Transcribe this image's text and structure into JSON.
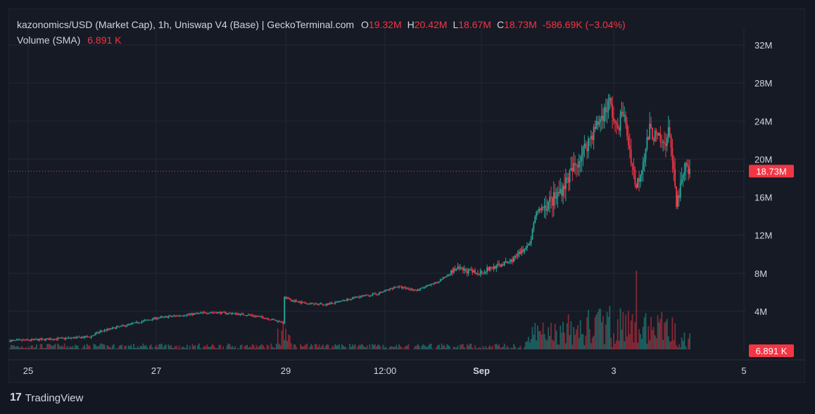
{
  "header": {
    "symbol": "kazonomics/USD (Market Cap), 1h, Uniswap V4 (Base) | GeckoTerminal.com",
    "o_label": "O",
    "o_value": "19.32M",
    "h_label": "H",
    "h_value": "20.42M",
    "l_label": "L",
    "l_value": "18.67M",
    "c_label": "C",
    "c_value": "18.73M",
    "change": "-586.69K (−3.04%)",
    "volume_label": "Volume (SMA)",
    "volume_value": "6.891 K"
  },
  "footer": {
    "brand": "TradingView",
    "logo_icon": "tradingview-logo-icon"
  },
  "colors": {
    "up": "#26a69a",
    "down": "#f23645",
    "grid": "#232838",
    "text": "#d1d4dc",
    "bg": "#161a25"
  },
  "chart_data": {
    "type": "candlestick",
    "y_axis": {
      "ticks": [
        "4M",
        "8M",
        "12M",
        "16M",
        "20M",
        "24M",
        "28M",
        "32M"
      ],
      "tick_values": [
        4,
        8,
        12,
        16,
        20,
        24,
        28,
        32
      ],
      "unit": "M",
      "position": "right"
    },
    "x_axis": {
      "ticks": [
        "25",
        "27",
        "29",
        "12:00",
        "Sep",
        "3",
        "5"
      ]
    },
    "last_price_label": "18.73M",
    "last_volume_label": "6.891 K",
    "price_path_millions": [
      [
        0,
        0.9
      ],
      [
        20,
        1.0
      ],
      [
        40,
        1.15
      ],
      [
        60,
        1.3
      ],
      [
        68,
        1.9
      ],
      [
        80,
        2.3
      ],
      [
        95,
        2.8
      ],
      [
        110,
        3.3
      ],
      [
        130,
        3.6
      ],
      [
        150,
        3.9
      ],
      [
        165,
        3.8
      ],
      [
        180,
        3.6
      ],
      [
        192,
        3.3
      ],
      [
        205,
        2.8
      ],
      [
        206,
        5.5
      ],
      [
        210,
        5.2
      ],
      [
        220,
        4.9
      ],
      [
        235,
        4.7
      ],
      [
        245,
        4.9
      ],
      [
        260,
        5.5
      ],
      [
        275,
        5.8
      ],
      [
        290,
        6.6
      ],
      [
        305,
        6.2
      ],
      [
        320,
        7.0
      ],
      [
        335,
        8.5
      ],
      [
        350,
        8.0
      ],
      [
        360,
        8.5
      ],
      [
        375,
        9.2
      ],
      [
        390,
        11.0
      ],
      [
        395,
        14.5
      ],
      [
        410,
        16.0
      ],
      [
        425,
        19.5
      ],
      [
        440,
        23.5
      ],
      [
        450,
        26.0
      ],
      [
        455,
        23.0
      ],
      [
        460,
        25.0
      ],
      [
        470,
        17.0
      ],
      [
        480,
        23.0
      ],
      [
        490,
        21.5
      ],
      [
        495,
        23.0
      ],
      [
        500,
        15.0
      ],
      [
        503,
        17.0
      ],
      [
        507,
        19.0
      ],
      [
        510,
        18.7
      ]
    ],
    "volume_relative": "small bars along the bottom, spikes near 29 and near the Sep 2-4 rally (max ~8M scale)"
  }
}
